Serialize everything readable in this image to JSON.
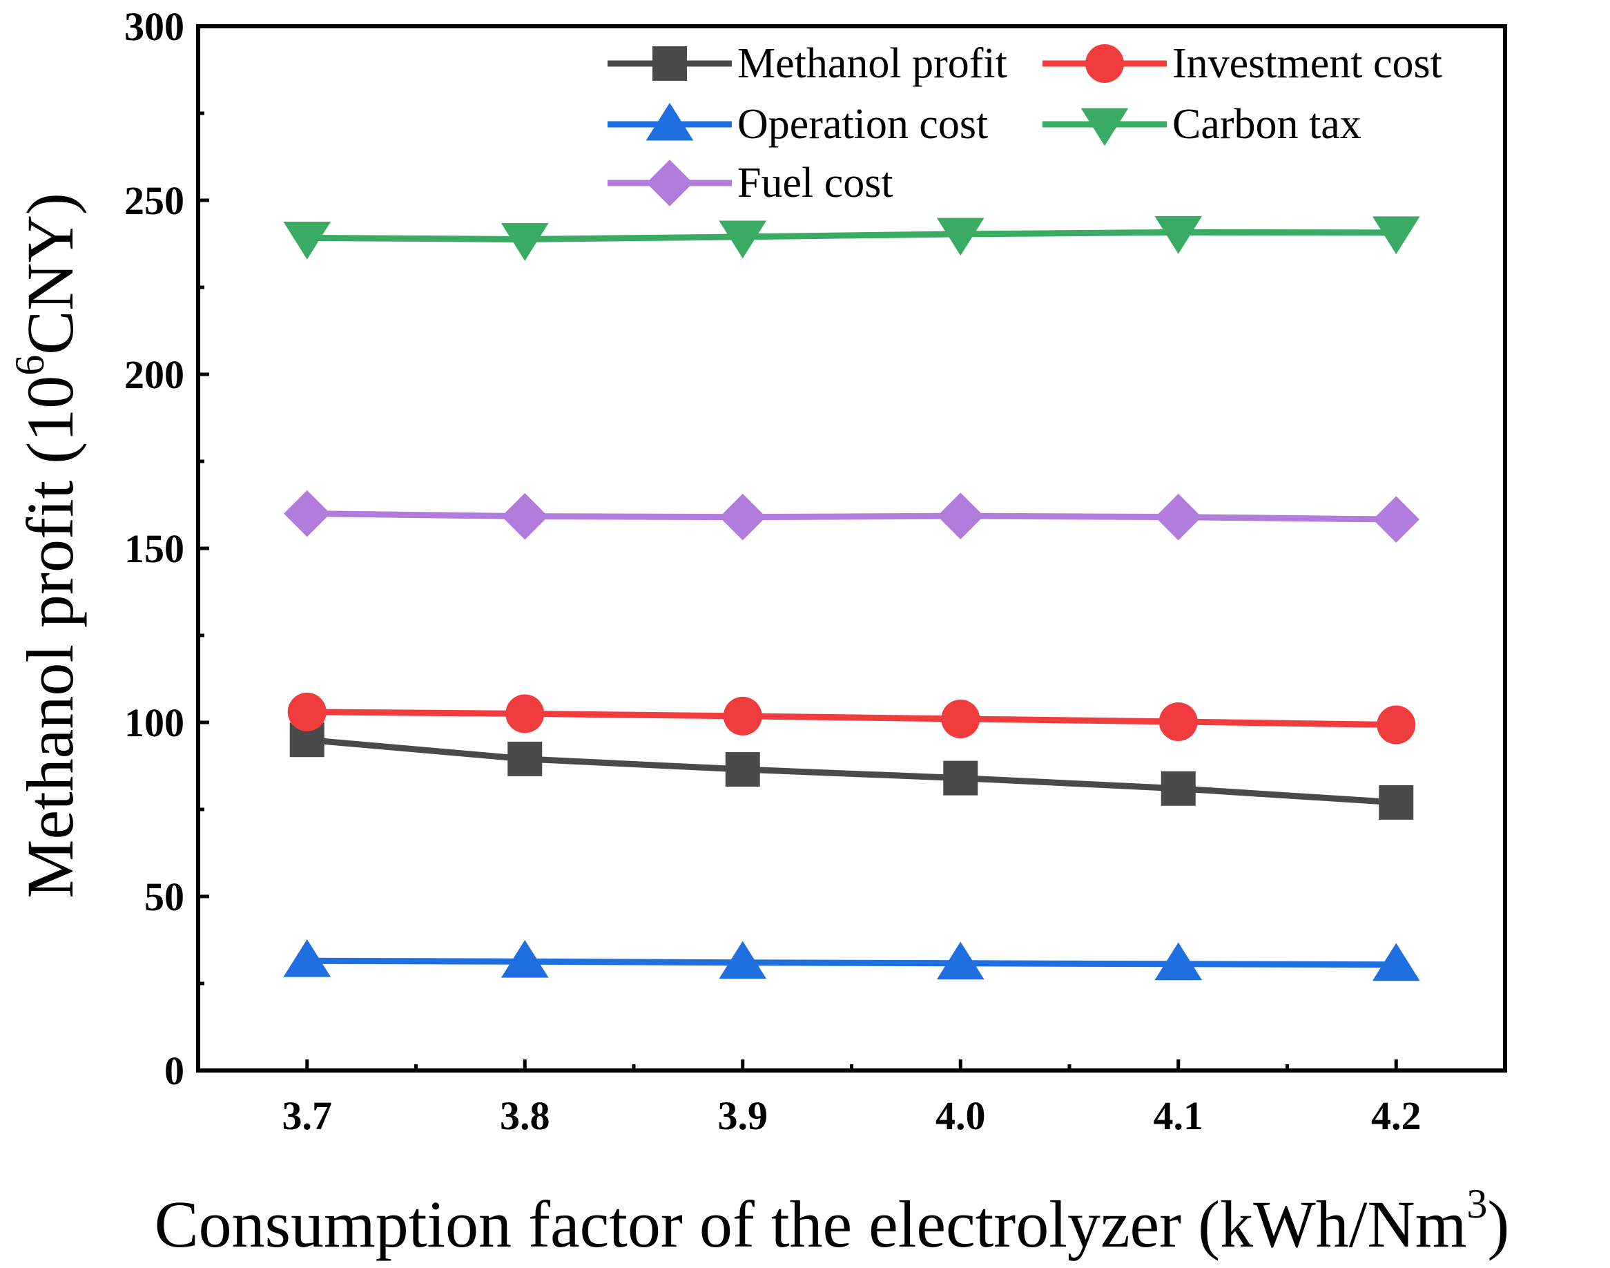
{
  "chart_data": {
    "type": "line",
    "title": "",
    "x": [
      3.7,
      3.8,
      3.9,
      4.0,
      4.1,
      4.2
    ],
    "x_tick_labels": [
      "3.7",
      "3.8",
      "3.9",
      "4.0",
      "4.1",
      "4.2"
    ],
    "xlim": [
      3.65,
      4.25
    ],
    "ylim": [
      0,
      300
    ],
    "y_ticks": [
      0,
      50,
      100,
      150,
      200,
      250,
      300
    ],
    "y_tick_labels": [
      "0",
      "50",
      "100",
      "150",
      "200",
      "250",
      "300"
    ],
    "xlabel_main": "Consumption factor of the electrolyzer (kWh/Nm",
    "xlabel_sup": "3",
    "xlabel_end": ")",
    "ylabel_main": "Methanol profit (10",
    "ylabel_sup": "6",
    "ylabel_end": "CNY)",
    "grid": false,
    "legend_position": "top-right",
    "series": [
      {
        "name": "Methanol profit",
        "color": "#4a4a4a",
        "marker": "square",
        "values": [
          95,
          89.5,
          86.5,
          84,
          81,
          77
        ]
      },
      {
        "name": "Investment cost",
        "color": "#f03c3c",
        "marker": "circle",
        "values": [
          103,
          102.5,
          101.8,
          101,
          100.2,
          99.3
        ]
      },
      {
        "name": "Operation cost",
        "color": "#1f6fe0",
        "marker": "triangle-up",
        "values": [
          31.5,
          31.3,
          31,
          30.8,
          30.6,
          30.4
        ]
      },
      {
        "name": "Carbon tax",
        "color": "#3aab62",
        "marker": "triangle-down",
        "values": [
          239.2,
          238.8,
          239.5,
          240.3,
          240.8,
          240.7
        ]
      },
      {
        "name": "Fuel cost",
        "color": "#b27cdc",
        "marker": "diamond",
        "values": [
          160,
          159.2,
          159,
          159.3,
          159,
          158.3
        ]
      }
    ]
  }
}
